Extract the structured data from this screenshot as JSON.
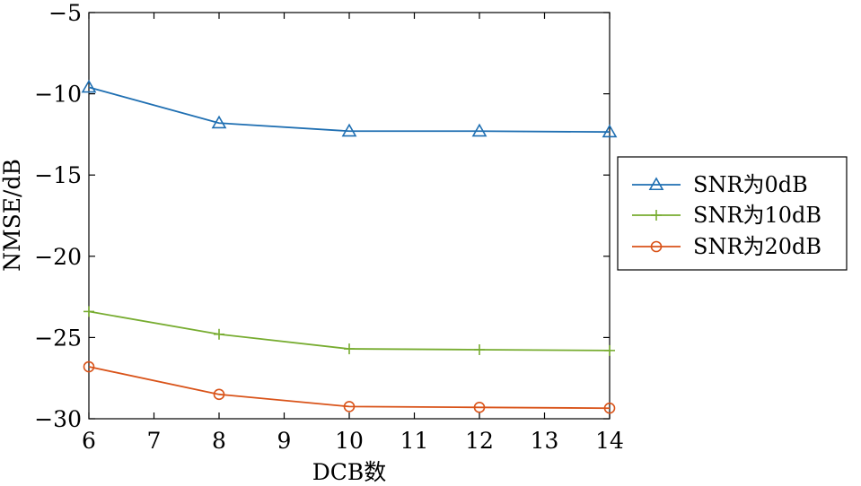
{
  "chart_data": {
    "type": "line",
    "xlabel": "DCB数",
    "ylabel": "NMSE/dB",
    "xlim": [
      6,
      14
    ],
    "ylim": [
      -30,
      -5
    ],
    "xticks": [
      6,
      7,
      8,
      9,
      10,
      11,
      12,
      13,
      14
    ],
    "yticks": [
      -5,
      -10,
      -15,
      -20,
      -25,
      -30
    ],
    "xtick_labels": [
      "6",
      "7",
      "8",
      "9",
      "10",
      "11",
      "12",
      "13",
      "14"
    ],
    "ytick_labels": [
      "−5",
      "−10",
      "−15",
      "−20",
      "−25",
      "−30"
    ],
    "grid": false,
    "legend_position": "right, outside plot",
    "x": [
      6,
      8,
      10,
      12,
      14
    ],
    "series": [
      {
        "name": "SNR为0dB",
        "marker": "triangle",
        "color": "#1f6fb2",
        "values": [
          -9.6,
          -11.8,
          -12.3,
          -12.3,
          -12.35
        ]
      },
      {
        "name": "SNR为10dB",
        "marker": "plus",
        "color": "#77ac30",
        "values": [
          -23.4,
          -24.8,
          -25.7,
          -25.75,
          -25.8
        ]
      },
      {
        "name": "SNR为20dB",
        "marker": "circle",
        "color": "#d95319",
        "values": [
          -26.8,
          -28.5,
          -29.25,
          -29.3,
          -29.35
        ]
      }
    ]
  }
}
